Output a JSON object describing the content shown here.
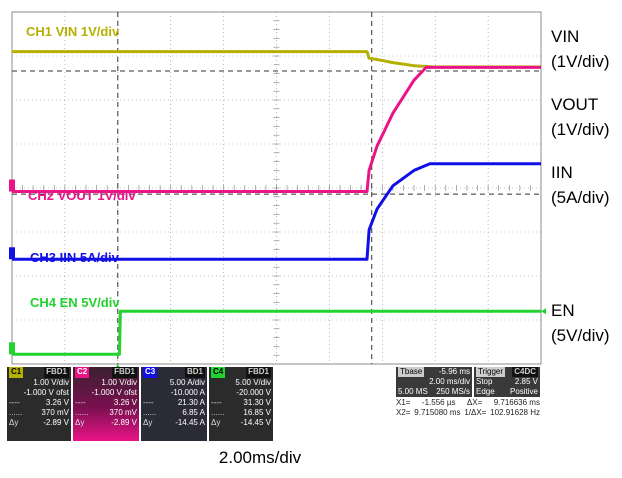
{
  "colors": {
    "ch1": "#b5b000",
    "ch2": "#ea1487",
    "ch3": "#1010e6",
    "ch4": "#22d22e",
    "grid": "#8c8c8c"
  },
  "chart_data": {
    "type": "line",
    "title": "",
    "xlabel": "2.00ms/div",
    "x_units": "div",
    "y_units": "div",
    "xlim": [
      0,
      10
    ],
    "ylim": [
      0,
      8
    ],
    "series": [
      {
        "name": "CH1 VIN 1V/div",
        "key": "ch1",
        "x": [
          0,
          6.71,
          6.75,
          6.9,
          7.2,
          7.6,
          8.0,
          10
        ],
        "y": [
          7.1,
          7.1,
          6.95,
          6.92,
          6.85,
          6.78,
          6.75,
          6.75
        ]
      },
      {
        "name": "CH2 VOUT 1V/div",
        "key": "ch2",
        "x": [
          0,
          6.71,
          6.75,
          6.9,
          7.2,
          7.6,
          7.83,
          10
        ],
        "y": [
          3.92,
          3.92,
          4.4,
          4.95,
          5.7,
          6.45,
          6.74,
          6.74
        ]
      },
      {
        "name": "CH3 IIN 5A/div",
        "key": "ch3",
        "x": [
          0,
          6.71,
          6.75,
          6.9,
          7.2,
          7.6,
          7.9,
          10
        ],
        "y": [
          2.38,
          2.38,
          3.05,
          3.52,
          4.05,
          4.4,
          4.55,
          4.55
        ]
      },
      {
        "name": "CH4 EN 5V/div",
        "key": "ch4",
        "x": [
          0,
          2.03,
          2.05,
          10
        ],
        "y": [
          0.22,
          0.22,
          1.2,
          1.2
        ]
      }
    ],
    "grid": true
  },
  "trace_labels": {
    "ch1": "CH1 VIN 1V/div",
    "ch2": "CH2 VOUT 1V/div",
    "ch3": "CH3 IIN 5A/div",
    "ch4": "CH4 EN 5V/div"
  },
  "right_labels": {
    "vin": "VIN",
    "vin_scale": "(1V/div)",
    "vout": "VOUT",
    "vout_scale": "(1V/div)",
    "iin": "IIN",
    "iin_scale": "(5A/div)",
    "en": "EN",
    "en_scale": "(5V/div)"
  },
  "timebase_caption": "2.00ms/div",
  "info": {
    "c1": {
      "tag": "C1",
      "flags": "FBD1",
      "scale": "1.00 V/div",
      "ofst": "-1.000 V ofst",
      "v3": "3.26 V",
      "v4": "370 mV",
      "dy": "-2.89 V"
    },
    "c2": {
      "tag": "C2",
      "flags": "FBD1",
      "scale": "1.00 V/div",
      "ofst": "-1.000 V ofst",
      "v3": "3.26 V",
      "v4": "370 mV",
      "dy": "-2.89 V"
    },
    "c3": {
      "tag": "C3",
      "flags": "BD1",
      "scale": "5.00 A/div",
      "ofst": "-10.000 A",
      "v3": "21.30 A",
      "v4": "6.85 A",
      "dy": "-14.45 A"
    },
    "c4": {
      "tag": "C4",
      "flags": "FBD1",
      "scale": "5.00 V/div",
      "ofst": "-20.000 V",
      "v3": "31.30 V",
      "v4": "16.85 V",
      "dy": "-14.45 V"
    },
    "dy_label": "Δy",
    "dash": "----",
    "dots": "......",
    "tbase_label": "Tbase",
    "tbase_val": "-5.96 ms",
    "tbase_div": "2.00 ms/div",
    "sample": "5.00 MS",
    "rate": "250 MS/s",
    "trigger_label": "Trigger",
    "trigger_flags": "C4DC",
    "stop": "Stop",
    "stop_val": "2.85 V",
    "edge": "Edge",
    "edge_val": "Positive",
    "x1_label": "X1=",
    "x1_val": "-1.556 µs",
    "dx_label": "ΔX=",
    "dx_val": "9.716636 ms",
    "x2_label": "X2=",
    "x2_val": "9.715080 ms",
    "inv_label": "1/ΔX=",
    "inv_val": "102.91628 Hz"
  }
}
